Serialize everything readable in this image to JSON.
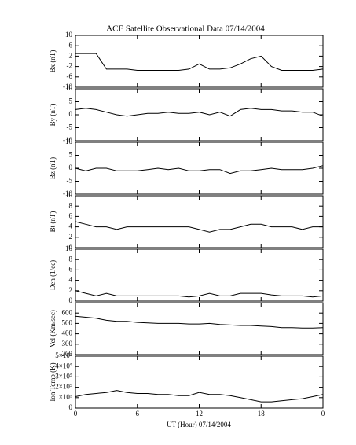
{
  "chart_data": [
    {
      "type": "line",
      "title": "ACE Satellite Observational Data   07/14/2004",
      "ylabel": "Bx (nT)",
      "x": [
        0,
        1,
        2,
        3,
        4,
        5,
        6,
        7,
        8,
        9,
        10,
        11,
        12,
        13,
        14,
        15,
        16,
        17,
        18,
        19,
        20,
        21,
        22,
        23,
        24
      ],
      "values": [
        3,
        3,
        3,
        -3,
        -3,
        -3,
        -3.5,
        -3.5,
        -3.5,
        -3.5,
        -3.5,
        -3,
        -1,
        -3,
        -3,
        -2.5,
        -1,
        1,
        2,
        -2,
        -3.5,
        -3.5,
        -3.5,
        -3.5,
        -3
      ],
      "ylim": [
        -10,
        10
      ],
      "yticks": [
        -10,
        -6,
        -2,
        2,
        6,
        10
      ],
      "xlim": [
        0,
        24
      ]
    },
    {
      "type": "line",
      "ylabel": "By (nT)",
      "x": [
        0,
        1,
        2,
        3,
        4,
        5,
        6,
        7,
        8,
        9,
        10,
        11,
        12,
        13,
        14,
        15,
        16,
        17,
        18,
        19,
        20,
        21,
        22,
        23,
        24
      ],
      "values": [
        2,
        2.5,
        2,
        1,
        0,
        -0.5,
        0,
        0.5,
        0.5,
        1,
        0.5,
        0.5,
        1,
        0,
        1,
        -0.5,
        2,
        2.5,
        2,
        2,
        1.5,
        1.5,
        1,
        1,
        -0.5
      ],
      "ylim": [
        -10,
        10
      ],
      "yticks": [
        -10,
        -5,
        0,
        5,
        10
      ],
      "xlim": [
        0,
        24
      ]
    },
    {
      "type": "line",
      "ylabel": "Bz (nT)",
      "x": [
        0,
        1,
        2,
        3,
        4,
        5,
        6,
        7,
        8,
        9,
        10,
        11,
        12,
        13,
        14,
        15,
        16,
        17,
        18,
        19,
        20,
        21,
        22,
        23,
        24
      ],
      "values": [
        0,
        -1,
        0,
        0,
        -1,
        -1,
        -1,
        -0.5,
        0,
        -0.5,
        0,
        -1,
        -1,
        -0.5,
        -0.5,
        -2,
        -1,
        -1,
        -0.5,
        0,
        -0.5,
        -0.5,
        -0.5,
        0,
        1
      ],
      "ylim": [
        -10,
        10
      ],
      "yticks": [
        -10,
        -5,
        0,
        5,
        10
      ],
      "xlim": [
        0,
        24
      ]
    },
    {
      "type": "line",
      "ylabel": "Bt (nT)",
      "x": [
        0,
        1,
        2,
        3,
        4,
        5,
        6,
        7,
        8,
        9,
        10,
        11,
        12,
        13,
        14,
        15,
        16,
        17,
        18,
        19,
        20,
        21,
        22,
        23,
        24
      ],
      "values": [
        5,
        4.5,
        4,
        4,
        3.5,
        4,
        4,
        4,
        4,
        4,
        4,
        4,
        3.5,
        3,
        3.5,
        3.5,
        4,
        4.5,
        4.5,
        4,
        4,
        4,
        3.5,
        4,
        4
      ],
      "ylim": [
        0,
        10
      ],
      "yticks": [
        0,
        2,
        4,
        6,
        8,
        10
      ],
      "xlim": [
        0,
        24
      ]
    },
    {
      "type": "line",
      "ylabel": "Den (1/cc)",
      "x": [
        0,
        1,
        2,
        3,
        4,
        5,
        6,
        7,
        8,
        9,
        10,
        11,
        12,
        13,
        14,
        15,
        16,
        17,
        18,
        19,
        20,
        21,
        22,
        23,
        24
      ],
      "values": [
        2,
        1.5,
        1,
        1.5,
        1,
        1,
        1,
        1,
        1,
        1,
        1,
        0.8,
        1,
        1.5,
        1,
        1,
        1.5,
        1.5,
        1.5,
        1.2,
        1,
        1,
        1,
        0.8,
        1
      ],
      "ylim": [
        0,
        10
      ],
      "yticks": [
        0,
        2,
        4,
        6,
        8,
        10
      ],
      "xlim": [
        0,
        24
      ]
    },
    {
      "type": "line",
      "ylabel": "Vel (Km/sec)",
      "x": [
        0,
        1,
        2,
        3,
        4,
        5,
        6,
        7,
        8,
        9,
        10,
        11,
        12,
        13,
        14,
        15,
        16,
        17,
        18,
        19,
        20,
        21,
        22,
        23,
        24
      ],
      "values": [
        570,
        560,
        550,
        530,
        520,
        520,
        510,
        505,
        500,
        500,
        500,
        495,
        495,
        500,
        490,
        485,
        480,
        480,
        475,
        470,
        460,
        460,
        455,
        455,
        460
      ],
      "ylim": [
        200,
        700
      ],
      "yticks": [
        200,
        300,
        400,
        500,
        600
      ],
      "xlim": [
        0,
        24
      ]
    },
    {
      "type": "line",
      "ylabel": "Ion Temp (K)",
      "xlabel": "UT (Hour)   07/14/2004",
      "x": [
        0,
        1,
        2,
        3,
        4,
        5,
        6,
        7,
        8,
        9,
        10,
        11,
        12,
        13,
        14,
        15,
        16,
        17,
        18,
        19,
        20,
        21,
        22,
        23,
        24
      ],
      "values": [
        110000,
        130000,
        140000,
        150000,
        170000,
        150000,
        140000,
        140000,
        130000,
        130000,
        120000,
        120000,
        150000,
        130000,
        130000,
        120000,
        100000,
        80000,
        60000,
        60000,
        70000,
        80000,
        90000,
        110000,
        130000
      ],
      "ylim": [
        0,
        500000
      ],
      "yticks": [
        0,
        {
          "value": 100000,
          "label": "1×10⁵"
        },
        {
          "value": 200000,
          "label": "2×10⁵"
        },
        {
          "value": 300000,
          "label": "3×10⁵"
        },
        {
          "value": 400000,
          "label": "4×10⁵"
        },
        {
          "value": 500000,
          "label": "5×10⁵"
        }
      ],
      "xlim": [
        0,
        24
      ],
      "xticks": [
        0,
        6,
        12,
        18,
        {
          "value": 24,
          "label": "0"
        }
      ]
    }
  ]
}
